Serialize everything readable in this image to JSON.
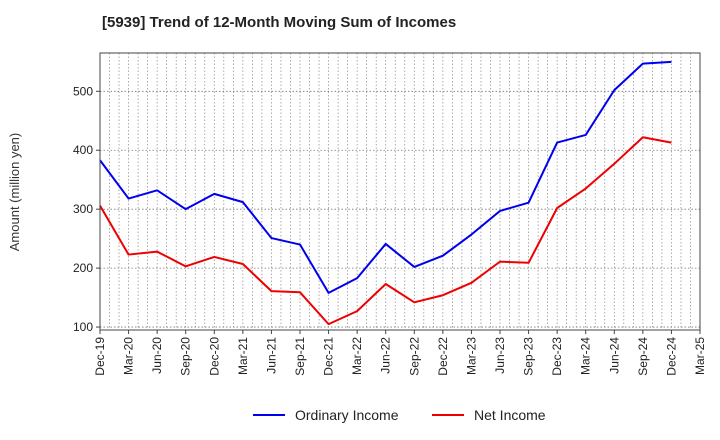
{
  "chart_data": {
    "type": "line",
    "title": "[5939]  Trend of 12-Month Moving Sum of Incomes",
    "xlabel": "",
    "ylabel": "Amount (million yen)",
    "ylim": [
      95,
      565
    ],
    "yticks": [
      100,
      200,
      300,
      400,
      500
    ],
    "grid": true,
    "legend_position": "bottom",
    "x": [
      "Dec-19",
      "Mar-20",
      "Jun-20",
      "Sep-20",
      "Dec-20",
      "Mar-21",
      "Jun-21",
      "Sep-21",
      "Dec-21",
      "Mar-22",
      "Jun-22",
      "Sep-22",
      "Dec-22",
      "Mar-23",
      "Jun-23",
      "Sep-23",
      "Dec-23",
      "Mar-24",
      "Jun-24",
      "Sep-24",
      "Dec-24",
      "Mar-25"
    ],
    "series": [
      {
        "name": "Ordinary Income",
        "color": "#0000ee",
        "values": [
          383,
          318,
          332,
          300,
          326,
          312,
          251,
          240,
          158,
          183,
          241,
          202,
          221,
          257,
          297,
          311,
          413,
          426,
          502,
          547,
          550,
          null
        ]
      },
      {
        "name": "Net Income",
        "color": "#ee0000",
        "values": [
          306,
          223,
          228,
          203,
          219,
          207,
          161,
          159,
          105,
          127,
          173,
          142,
          154,
          175,
          211,
          209,
          302,
          335,
          377,
          422,
          413,
          null
        ]
      }
    ]
  }
}
